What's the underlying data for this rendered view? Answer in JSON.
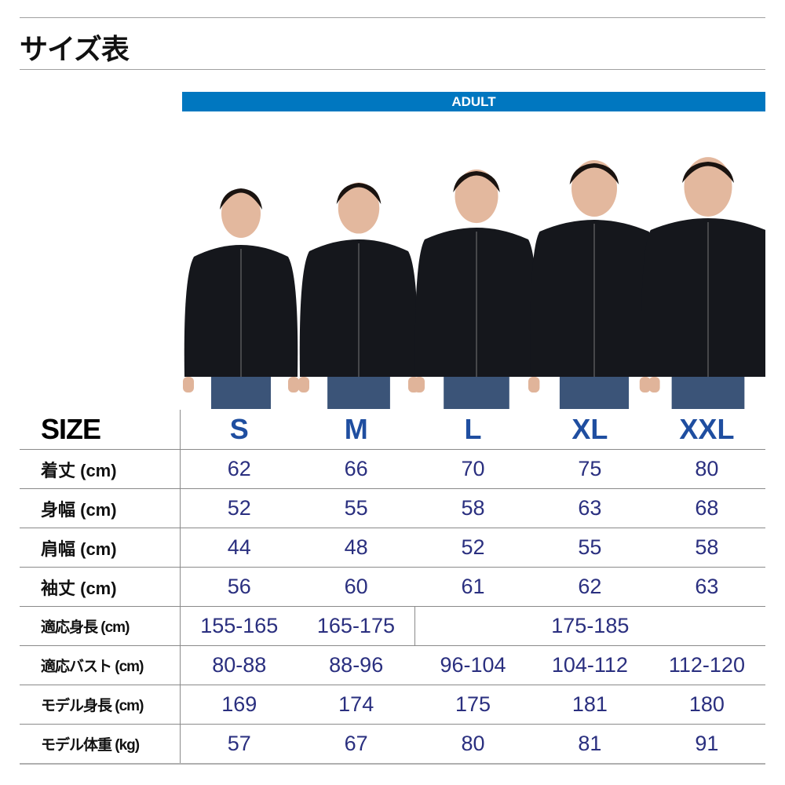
{
  "title": "サイズ表",
  "group_label": "ADULT",
  "colors": {
    "band": "#0077c0",
    "size_header": "#1f4ea0",
    "values": "#2a2f7f"
  },
  "table": {
    "header": {
      "label": "SIZE",
      "sizes": [
        "S",
        "M",
        "L",
        "XL",
        "XXL"
      ]
    },
    "rows": [
      {
        "label": "着丈 (cm)",
        "values": [
          "62",
          "66",
          "70",
          "75",
          "80"
        ]
      },
      {
        "label": "身幅 (cm)",
        "values": [
          "52",
          "55",
          "58",
          "63",
          "68"
        ]
      },
      {
        "label": "肩幅 (cm)",
        "values": [
          "44",
          "48",
          "52",
          "55",
          "58"
        ]
      },
      {
        "label": "袖丈 (cm)",
        "values": [
          "56",
          "60",
          "61",
          "62",
          "63"
        ]
      },
      {
        "label": "適応身長 (cm)",
        "values": [
          "155-165",
          "165-175",
          "175-185"
        ]
      },
      {
        "label": "適応バスト (cm)",
        "values": [
          "80-88",
          "88-96",
          "96-104",
          "104-112",
          "112-120"
        ]
      },
      {
        "label": "モデル身長 (cm)",
        "values": [
          "169",
          "174",
          "175",
          "181",
          "180"
        ]
      },
      {
        "label": "モデル体重 (kg)",
        "values": [
          "57",
          "67",
          "80",
          "81",
          "91"
        ]
      }
    ]
  }
}
